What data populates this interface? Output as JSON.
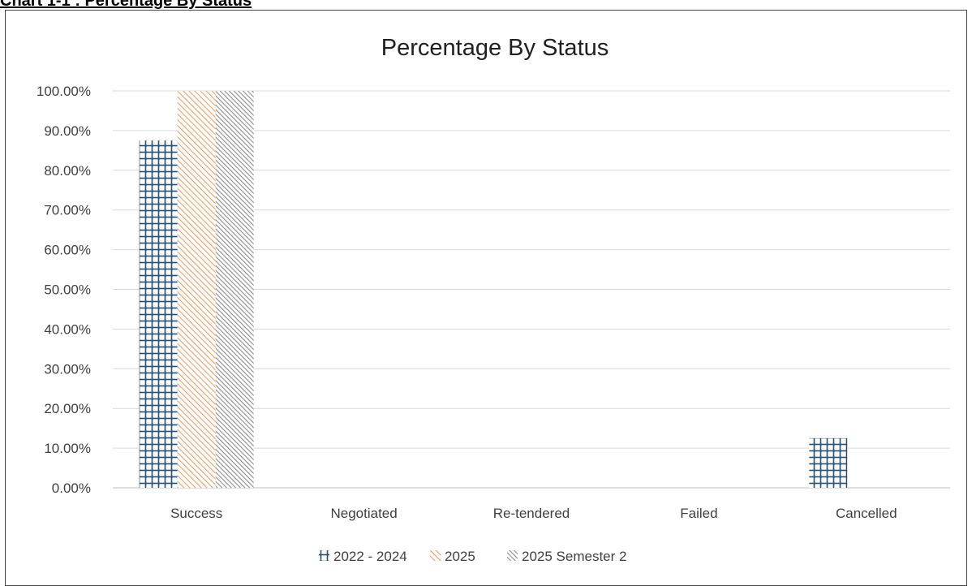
{
  "document": {
    "caption": "Chart 1-1 : Percentage By Status"
  },
  "chart_data": {
    "type": "bar",
    "title": "Percentage By Status",
    "xlabel": "",
    "ylabel": "",
    "categories": [
      "Success",
      "Negotiated",
      "Re-tendered",
      "Failed",
      "Cancelled"
    ],
    "series": [
      {
        "name": "2022 - 2024",
        "values": [
          87.5,
          0,
          0,
          0,
          12.5
        ],
        "color": "#1f4e79",
        "pattern": "grid"
      },
      {
        "name": "2025",
        "values": [
          100,
          0,
          0,
          0,
          0
        ],
        "color": "#ed7d31",
        "pattern": "diagonal-light"
      },
      {
        "name": "2025 Semester 2",
        "values": [
          100,
          0,
          0,
          0,
          0
        ],
        "color": "#8c8c8c",
        "pattern": "diagonal-dense"
      }
    ],
    "ylim": [
      0,
      100
    ],
    "ytick_step": 10,
    "ytick_labels": [
      "0.00%",
      "10.00%",
      "20.00%",
      "30.00%",
      "40.00%",
      "50.00%",
      "60.00%",
      "70.00%",
      "80.00%",
      "90.00%",
      "100.00%"
    ],
    "grid": true,
    "legend_position": "bottom"
  }
}
